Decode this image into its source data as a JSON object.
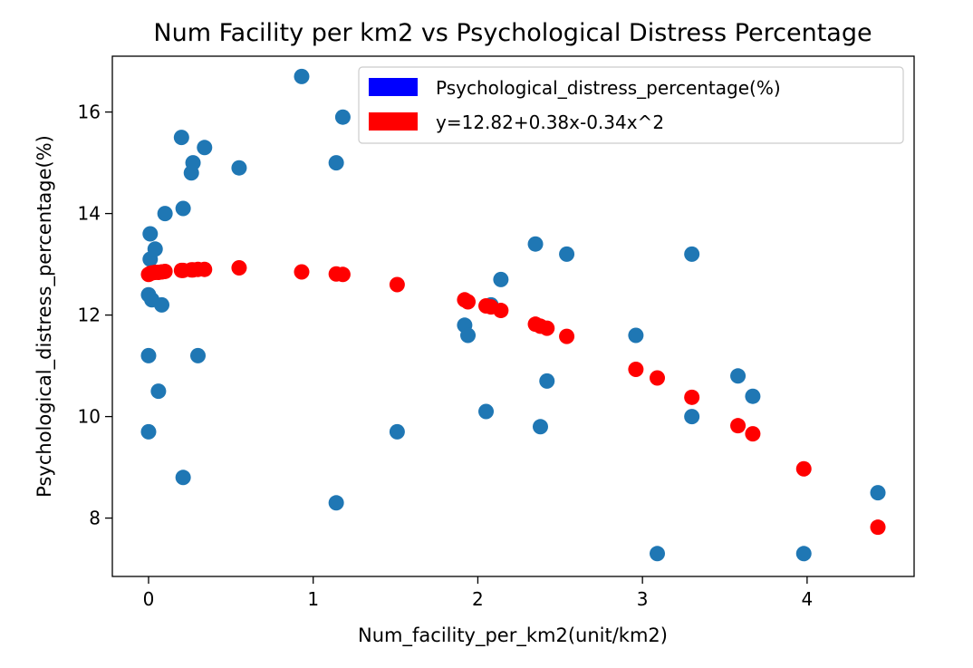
{
  "chart_data": {
    "type": "scatter",
    "title": "Num Facility per km2 vs Psychological Distress Percentage",
    "xlabel": "Num_facility_per_km2(unit/km2)",
    "ylabel": "Psychological_distress_percentage(%)",
    "xlim": [
      -0.22,
      4.65
    ],
    "ylim": [
      6.85,
      17.1
    ],
    "xticks": [
      0,
      1,
      2,
      3,
      4
    ],
    "yticks": [
      8,
      10,
      12,
      14,
      16
    ],
    "grid": false,
    "legend_position": "top-right",
    "series": [
      {
        "name": "Psychological_distress_percentage(%)",
        "color": "#1f77b4",
        "legend_color": "#0000ff",
        "points": [
          [
            0.0,
            12.4
          ],
          [
            0.0,
            11.2
          ],
          [
            0.0,
            9.7
          ],
          [
            0.01,
            13.6
          ],
          [
            0.01,
            13.1
          ],
          [
            0.02,
            12.3
          ],
          [
            0.04,
            13.3
          ],
          [
            0.06,
            10.5
          ],
          [
            0.08,
            12.2
          ],
          [
            0.1,
            14.0
          ],
          [
            0.2,
            15.5
          ],
          [
            0.21,
            14.1
          ],
          [
            0.21,
            8.8
          ],
          [
            0.26,
            14.8
          ],
          [
            0.27,
            15.0
          ],
          [
            0.3,
            11.2
          ],
          [
            0.34,
            15.3
          ],
          [
            0.55,
            14.9
          ],
          [
            0.93,
            16.7
          ],
          [
            1.14,
            15.0
          ],
          [
            1.14,
            8.3
          ],
          [
            1.18,
            15.9
          ],
          [
            1.51,
            9.7
          ],
          [
            1.92,
            11.8
          ],
          [
            1.94,
            11.6
          ],
          [
            2.05,
            10.1
          ],
          [
            2.08,
            12.2
          ],
          [
            2.14,
            12.7
          ],
          [
            2.35,
            13.4
          ],
          [
            2.38,
            9.8
          ],
          [
            2.42,
            10.7
          ],
          [
            2.54,
            13.2
          ],
          [
            2.96,
            11.6
          ],
          [
            3.09,
            7.3
          ],
          [
            3.3,
            13.2
          ],
          [
            3.3,
            10.0
          ],
          [
            3.58,
            10.8
          ],
          [
            3.67,
            10.4
          ],
          [
            3.98,
            7.3
          ],
          [
            4.43,
            8.5
          ]
        ]
      },
      {
        "name": "y=12.82+0.38x-0.34x^2",
        "color": "#ff0000",
        "legend_color": "#ff0000",
        "points": [
          [
            0.0,
            12.8
          ],
          [
            0.01,
            12.82
          ],
          [
            0.02,
            12.83
          ],
          [
            0.04,
            12.84
          ],
          [
            0.06,
            12.84
          ],
          [
            0.08,
            12.85
          ],
          [
            0.1,
            12.86
          ],
          [
            0.2,
            12.88
          ],
          [
            0.21,
            12.88
          ],
          [
            0.26,
            12.89
          ],
          [
            0.27,
            12.89
          ],
          [
            0.3,
            12.9
          ],
          [
            0.34,
            12.9
          ],
          [
            0.55,
            12.93
          ],
          [
            0.93,
            12.85
          ],
          [
            1.14,
            12.81
          ],
          [
            1.18,
            12.8
          ],
          [
            1.51,
            12.6
          ],
          [
            1.92,
            12.3
          ],
          [
            1.94,
            12.26
          ],
          [
            2.05,
            12.18
          ],
          [
            2.08,
            12.16
          ],
          [
            2.14,
            12.09
          ],
          [
            2.35,
            11.82
          ],
          [
            2.38,
            11.78
          ],
          [
            2.42,
            11.74
          ],
          [
            2.54,
            11.58
          ],
          [
            2.96,
            10.93
          ],
          [
            3.09,
            10.76
          ],
          [
            3.3,
            10.38
          ],
          [
            3.58,
            9.82
          ],
          [
            3.67,
            9.66
          ],
          [
            3.98,
            8.97
          ],
          [
            4.43,
            7.82
          ]
        ]
      }
    ]
  }
}
